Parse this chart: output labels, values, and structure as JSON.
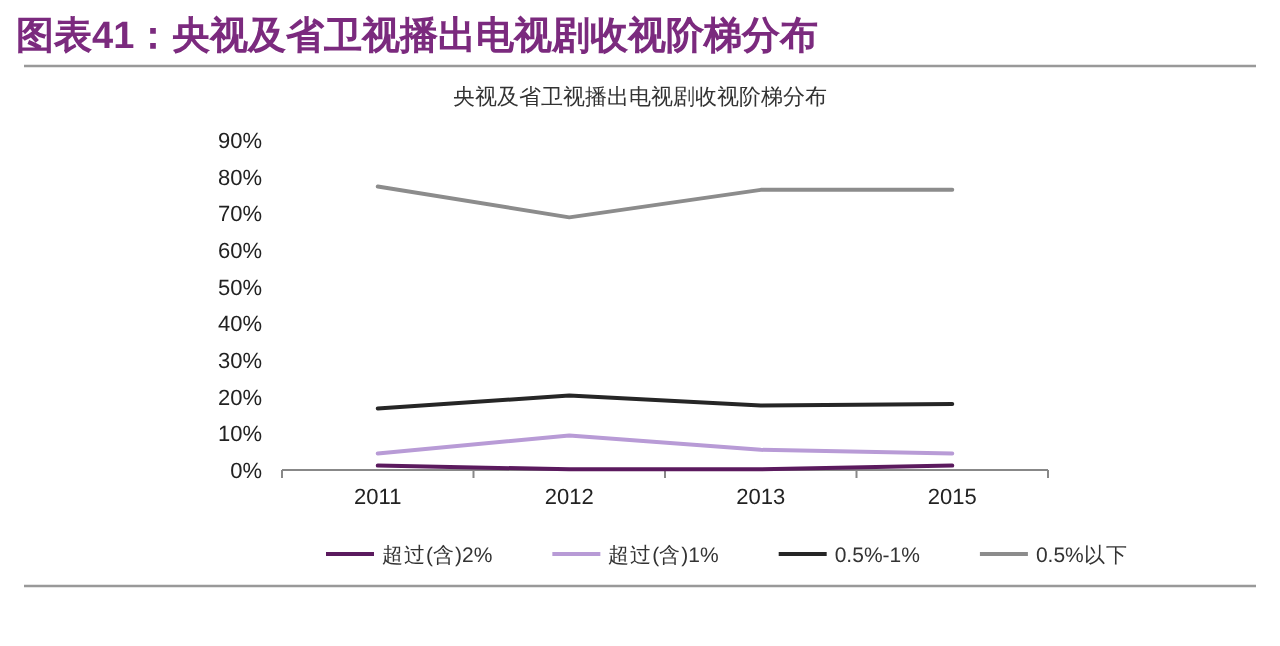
{
  "chart_data": {
    "type": "line",
    "title": "图表41：央视及省卫视播出电视剧收视阶梯分布",
    "subtitle": "央视及省卫视播出电视剧收视阶梯分布",
    "categories": [
      "2011",
      "2012",
      "2013",
      "2015"
    ],
    "series": [
      {
        "name": "超过(含)2%",
        "color": "#5b1a5e",
        "values": [
          1.2,
          0.2,
          0.2,
          1.2
        ]
      },
      {
        "name": "超过(含)1%",
        "color": "#b89bd6",
        "values": [
          4.5,
          9.4,
          5.5,
          4.5
        ]
      },
      {
        "name": "0.5%-1%",
        "color": "#262626",
        "values": [
          16.8,
          20.3,
          17.6,
          18.0
        ]
      },
      {
        "name": "0.5%以下",
        "color": "#8c8c8c",
        "values": [
          77.3,
          68.9,
          76.4,
          76.4
        ]
      }
    ],
    "ylim": [
      0,
      90
    ],
    "yticks": [
      {
        "value": 0,
        "label": "0%"
      },
      {
        "value": 10,
        "label": "10%"
      },
      {
        "value": 20,
        "label": "20%"
      },
      {
        "value": 30,
        "label": "30%"
      },
      {
        "value": 40,
        "label": "40%"
      },
      {
        "value": 50,
        "label": "50%"
      },
      {
        "value": 60,
        "label": "60%"
      },
      {
        "value": 70,
        "label": "70%"
      },
      {
        "value": 80,
        "label": "80%"
      },
      {
        "value": 90,
        "label": "90%"
      }
    ],
    "grid": false,
    "legend": "bottom",
    "marker": "none",
    "line_style": "solid"
  }
}
